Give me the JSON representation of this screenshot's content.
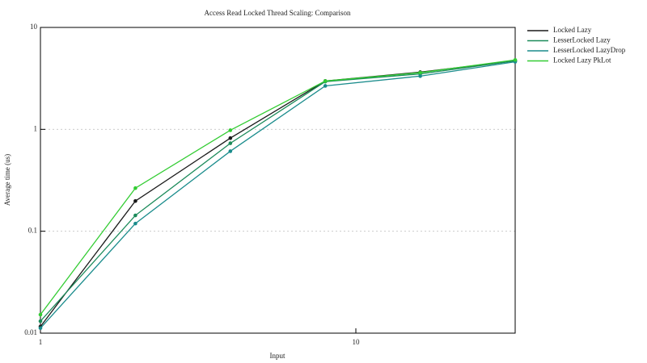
{
  "chart_data": {
    "type": "line",
    "title": "Access Read Locked Thread Scaling: Comparison",
    "x_label": "Input",
    "y_label": "Average time (us)",
    "x": [
      1,
      2,
      4,
      8,
      16,
      32
    ],
    "series": [
      {
        "name": "Locked Lazy",
        "color": "#1a1a1a",
        "values": [
          0.0116,
          0.198,
          0.82,
          2.98,
          3.64,
          4.7
        ]
      },
      {
        "name": "LesserLocked Lazy",
        "color": "#1b8a5a",
        "values": [
          0.0131,
          0.143,
          0.73,
          2.94,
          3.5,
          4.7
        ]
      },
      {
        "name": "LesserLocked LazyDrop",
        "color": "#1a8c8c",
        "values": [
          0.0112,
          0.119,
          0.61,
          2.67,
          3.33,
          4.6
        ]
      },
      {
        "name": "Locked Lazy PkLot",
        "color": "#33cc33",
        "values": [
          0.0152,
          0.265,
          0.98,
          2.98,
          3.6,
          4.8
        ]
      }
    ],
    "xlim": [
      1,
      32
    ],
    "xticks": [
      1,
      10
    ],
    "xscale": "log",
    "ylim": [
      0.01,
      10
    ],
    "yticks": [
      0.01,
      0.1,
      1,
      10
    ],
    "yscale": "log",
    "grid": true,
    "legend": "outside-right"
  }
}
